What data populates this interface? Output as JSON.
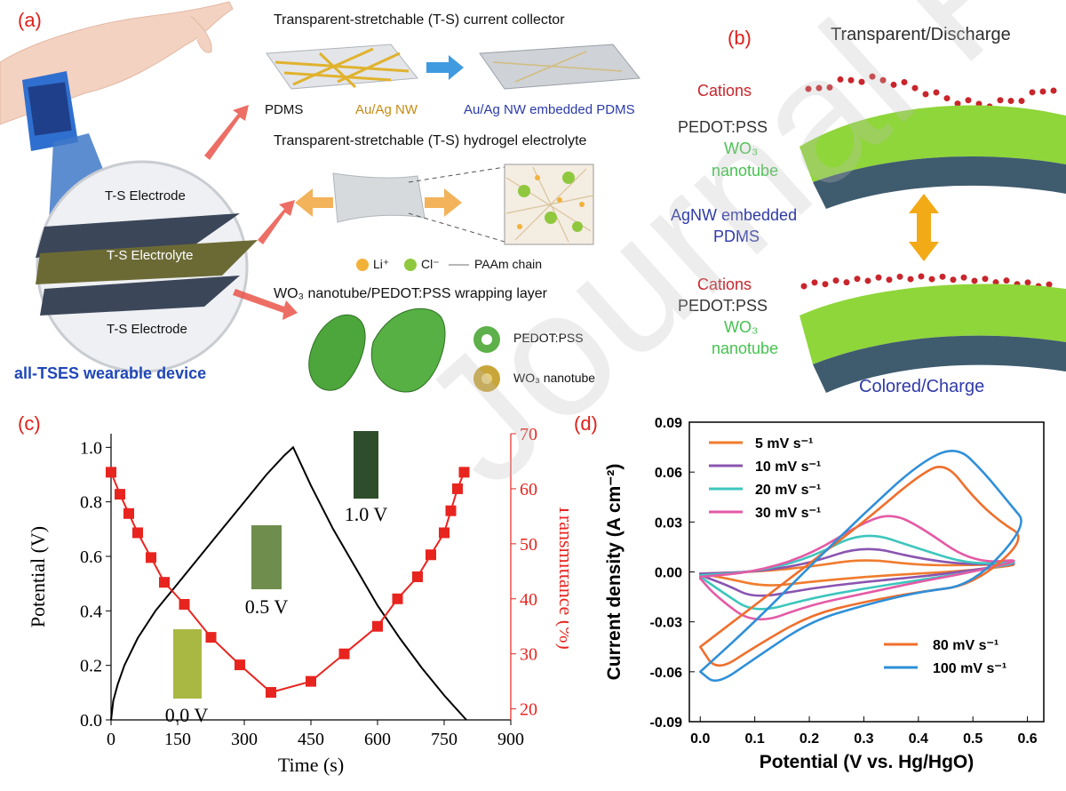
{
  "panel_a": {
    "label": "(a)",
    "collector_title": "Transparent-stretchable (T-S) current collector",
    "pdms": "PDMS",
    "au_ag_nw": "Au/Ag NW",
    "embedded": "Au/Ag NW embedded PDMS",
    "hydrogel_title": "Transparent-stretchable (T-S) hydrogel electrolyte",
    "legend_li": "Li⁺",
    "legend_cl": "Cl⁻",
    "legend_paam": "PAAm chain",
    "wo3_title": "WO₃ nanotube/PEDOT:PSS wrapping layer",
    "pedot": "PEDOT:PSS",
    "wo3": "WO₃ nanotube",
    "electrode_top": "T-S Electrode",
    "electrolyte": "T-S Electrolyte",
    "electrode_bottom": "T-S Electrode",
    "device": "all-TSES wearable device"
  },
  "panel_b": {
    "label": "(b)",
    "top_title": "Transparent/Discharge",
    "cations": "Cations",
    "pedot": "PEDOT:PSS",
    "wo3_a": "WO₃",
    "nanotube": "nanotube",
    "agnw": "AgNW embedded",
    "pdms": "PDMS",
    "bottom_title": "Colored/Charge"
  },
  "panel_c": {
    "label": "(c)",
    "photo_labels": [
      "0.0 V",
      "0.5 V",
      "1.0 V"
    ]
  },
  "panel_d": {
    "label": "(d)"
  },
  "watermark": "Journal Pre-proofs",
  "chart_data": [
    {
      "type": "line",
      "panel": "c",
      "xlabel": "Time (s)",
      "ylabel": "Potential (V)",
      "y2label": "Transmittance (%)",
      "xlim": [
        0,
        900
      ],
      "ylim": [
        0,
        1.05
      ],
      "y2lim": [
        18,
        70
      ],
      "x_ticks": [
        0,
        150,
        300,
        450,
        600,
        750,
        900
      ],
      "y_ticks": [
        0.0,
        0.2,
        0.4,
        0.6,
        0.8,
        1.0
      ],
      "y2_ticks": [
        20,
        30,
        40,
        50,
        60,
        70
      ],
      "series": [
        {
          "axis": "left",
          "color": "#000000",
          "x": [
            0,
            5,
            15,
            30,
            60,
            100,
            150,
            200,
            250,
            300,
            350,
            390,
            410,
            450,
            500,
            550,
            600,
            650,
            700,
            750,
            800
          ],
          "y": [
            0.0,
            0.07,
            0.13,
            0.2,
            0.3,
            0.4,
            0.5,
            0.6,
            0.7,
            0.8,
            0.9,
            0.97,
            1.0,
            0.86,
            0.7,
            0.56,
            0.42,
            0.3,
            0.19,
            0.09,
            0.0
          ]
        },
        {
          "axis": "right",
          "color": "#e8241f",
          "x": [
            0,
            20,
            40,
            60,
            90,
            120,
            165,
            225,
            290,
            360,
            450,
            525,
            600,
            645,
            690,
            720,
            750,
            765,
            780,
            795
          ],
          "y": [
            63,
            59,
            55.5,
            52,
            47.5,
            43,
            39,
            33,
            28,
            23,
            25,
            30,
            35,
            40,
            44,
            48,
            52,
            56,
            60,
            63
          ]
        }
      ]
    },
    {
      "type": "line",
      "panel": "d",
      "xlabel": "Potential (V vs. Hg/HgO)",
      "ylabel": "Current density (A cm⁻²)",
      "xlim": [
        -0.02,
        0.63
      ],
      "ylim": [
        -0.09,
        0.09
      ],
      "x_ticks": [
        "0.0",
        "0.1",
        "0.2",
        "0.3",
        "0.4",
        "0.5",
        "0.6"
      ],
      "y_ticks": [
        "0.09",
        "0.06",
        "0.03",
        "0.00",
        "-0.03",
        "-0.06",
        "-0.09"
      ],
      "legend_position": "top-left and bottom-right",
      "series": [
        {
          "name": "5 mV s⁻¹",
          "color": "#f07c2e",
          "x": [
            0.0,
            0.1,
            0.2,
            0.3,
            0.4,
            0.5,
            0.6,
            0.5,
            0.4,
            0.3,
            0.2,
            0.12,
            0.05,
            0.0
          ],
          "y": [
            -0.001,
            0.0,
            0.003,
            0.008,
            0.004,
            0.004,
            0.005,
            0.001,
            -0.001,
            -0.003,
            -0.006,
            -0.009,
            -0.004,
            -0.001
          ]
        },
        {
          "name": "10 mV s⁻¹",
          "color": "#8a55b0",
          "x": [
            0.0,
            0.1,
            0.2,
            0.3,
            0.4,
            0.5,
            0.6,
            0.5,
            0.4,
            0.3,
            0.2,
            0.1,
            0.05,
            0.0
          ],
          "y": [
            -0.001,
            0.0,
            0.005,
            0.016,
            0.008,
            0.004,
            0.006,
            0.001,
            -0.003,
            -0.006,
            -0.01,
            -0.016,
            -0.008,
            -0.002
          ]
        },
        {
          "name": "20 mV s⁻¹",
          "color": "#3dc6bd",
          "x": [
            0.0,
            0.1,
            0.2,
            0.3,
            0.4,
            0.5,
            0.6,
            0.5,
            0.4,
            0.3,
            0.2,
            0.1,
            0.04,
            0.0
          ],
          "y": [
            -0.002,
            0.0,
            0.008,
            0.025,
            0.014,
            0.004,
            0.007,
            0.0,
            -0.005,
            -0.01,
            -0.016,
            -0.025,
            -0.012,
            -0.003
          ]
        },
        {
          "name": "30 mV s⁻¹",
          "color": "#e45aa5",
          "x": [
            0.0,
            0.1,
            0.2,
            0.3,
            0.35,
            0.4,
            0.5,
            0.6,
            0.5,
            0.4,
            0.3,
            0.2,
            0.1,
            0.03,
            0.0
          ],
          "y": [
            -0.003,
            0.0,
            0.01,
            0.03,
            0.035,
            0.028,
            0.005,
            0.008,
            0.0,
            -0.006,
            -0.013,
            -0.02,
            -0.032,
            -0.015,
            -0.004
          ]
        },
        {
          "name": "80 mV s⁻¹",
          "color": "#ef6f2c",
          "x": [
            0.0,
            0.1,
            0.2,
            0.3,
            0.4,
            0.45,
            0.5,
            0.55,
            0.6,
            0.5,
            0.4,
            0.3,
            0.2,
            0.1,
            0.03,
            0.0
          ],
          "y": [
            -0.045,
            -0.02,
            0.005,
            0.03,
            0.058,
            0.066,
            0.045,
            0.03,
            0.02,
            -0.008,
            -0.012,
            -0.018,
            -0.026,
            -0.045,
            -0.06,
            -0.045
          ]
        },
        {
          "name": "100 mV s⁻¹",
          "color": "#2f8fd8",
          "x": [
            0.0,
            0.1,
            0.2,
            0.3,
            0.4,
            0.47,
            0.52,
            0.57,
            0.6,
            0.5,
            0.4,
            0.3,
            0.2,
            0.1,
            0.03,
            0.0
          ],
          "y": [
            -0.06,
            -0.03,
            0.003,
            0.035,
            0.065,
            0.076,
            0.06,
            0.04,
            0.028,
            -0.008,
            -0.012,
            -0.02,
            -0.03,
            -0.052,
            -0.068,
            -0.06
          ]
        }
      ]
    }
  ]
}
